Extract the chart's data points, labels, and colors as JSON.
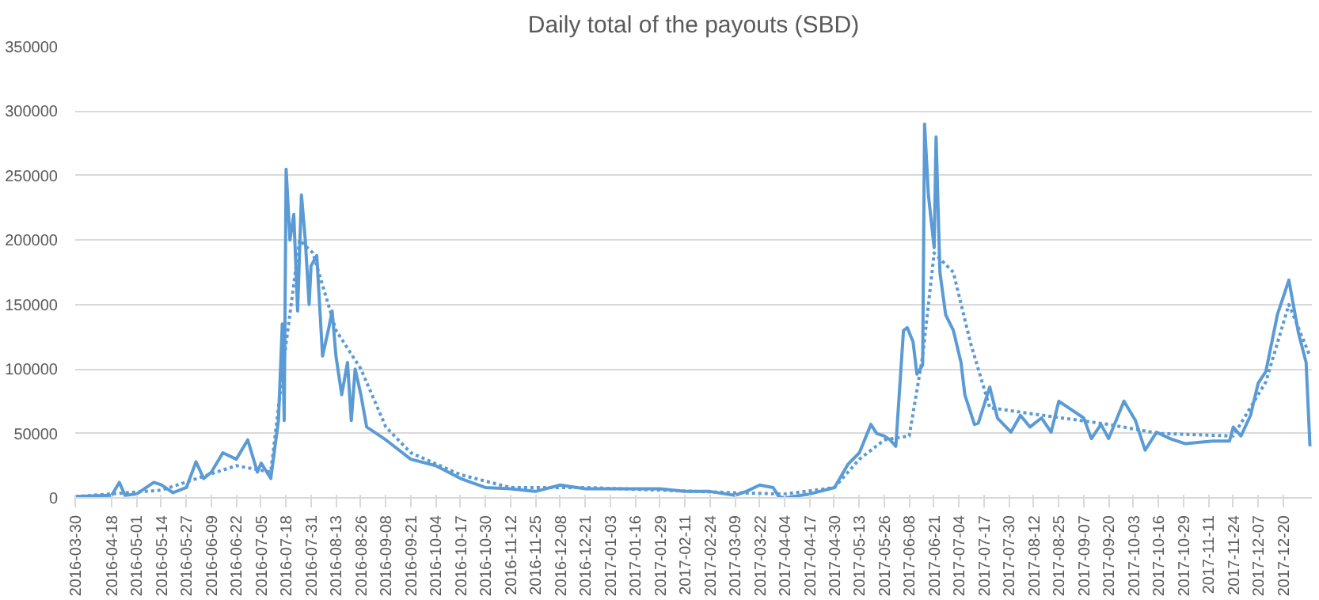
{
  "chart_data": {
    "type": "line",
    "title": "Daily total of the payouts (SBD)",
    "xlim": [
      "2016-03-30",
      "2018-01-04"
    ],
    "ylim": [
      0,
      350000
    ],
    "yticks": [
      0,
      50000,
      100000,
      150000,
      200000,
      250000,
      300000,
      350000
    ],
    "xticks": [
      "2016-03-30",
      "2016-04-18",
      "2016-05-01",
      "2016-05-14",
      "2016-05-27",
      "2016-06-09",
      "2016-06-22",
      "2016-07-05",
      "2016-07-18",
      "2016-07-31",
      "2016-08-13",
      "2016-08-26",
      "2016-09-08",
      "2016-09-21",
      "2016-10-04",
      "2016-10-17",
      "2016-10-30",
      "2016-11-12",
      "2016-11-25",
      "2016-12-08",
      "2016-12-21",
      "2017-01-03",
      "2017-01-16",
      "2017-01-29",
      "2017-02-11",
      "2017-02-24",
      "2017-03-09",
      "2017-03-22",
      "2017-04-04",
      "2017-04-17",
      "2017-04-30",
      "2017-05-13",
      "2017-05-26",
      "2017-06-08",
      "2017-06-21",
      "2017-07-04",
      "2017-07-17",
      "2017-07-30",
      "2017-08-12",
      "2017-08-25",
      "2017-09-07",
      "2017-09-20",
      "2017-10-03",
      "2017-10-16",
      "2017-10-29",
      "2017-11-11",
      "2017-11-24",
      "2017-12-07",
      "2017-12-20"
    ],
    "grid": "y",
    "marker": "none",
    "series": [
      {
        "color": "#5b9bd5",
        "line_style": "solid",
        "x": [
          "2016-03-30",
          "2016-04-18",
          "2016-04-22",
          "2016-04-25",
          "2016-05-01",
          "2016-05-10",
          "2016-05-14",
          "2016-05-20",
          "2016-05-27",
          "2016-06-01",
          "2016-06-05",
          "2016-06-09",
          "2016-06-15",
          "2016-06-22",
          "2016-06-28",
          "2016-07-03",
          "2016-07-05",
          "2016-07-10",
          "2016-07-14",
          "2016-07-16",
          "2016-07-17",
          "2016-07-18",
          "2016-07-20",
          "2016-07-22",
          "2016-07-24",
          "2016-07-26",
          "2016-07-28",
          "2016-07-30",
          "2016-07-31",
          "2016-08-03",
          "2016-08-06",
          "2016-08-09",
          "2016-08-11",
          "2016-08-13",
          "2016-08-16",
          "2016-08-19",
          "2016-08-21",
          "2016-08-23",
          "2016-08-26",
          "2016-08-29",
          "2016-09-08",
          "2016-09-21",
          "2016-10-04",
          "2016-10-17",
          "2016-10-30",
          "2016-11-12",
          "2016-11-25",
          "2016-12-08",
          "2016-12-21",
          "2017-01-03",
          "2017-01-16",
          "2017-01-29",
          "2017-02-11",
          "2017-02-24",
          "2017-03-09",
          "2017-03-15",
          "2017-03-22",
          "2017-03-29",
          "2017-04-01",
          "2017-04-04",
          "2017-04-17",
          "2017-04-30",
          "2017-05-07",
          "2017-05-13",
          "2017-05-19",
          "2017-05-22",
          "2017-05-26",
          "2017-05-29",
          "2017-06-01",
          "2017-06-05",
          "2017-06-07",
          "2017-06-10",
          "2017-06-12",
          "2017-06-15",
          "2017-06-16",
          "2017-06-18",
          "2017-06-21",
          "2017-06-22",
          "2017-06-24",
          "2017-06-27",
          "2017-07-01",
          "2017-07-05",
          "2017-07-07",
          "2017-07-12",
          "2017-07-14",
          "2017-07-20",
          "2017-07-24",
          "2017-07-31",
          "2017-08-05",
          "2017-08-10",
          "2017-08-16",
          "2017-08-21",
          "2017-08-25",
          "2017-08-31",
          "2017-09-07",
          "2017-09-11",
          "2017-09-16",
          "2017-09-20",
          "2017-09-28",
          "2017-10-04",
          "2017-10-09",
          "2017-10-15",
          "2017-10-22",
          "2017-10-30",
          "2017-11-13",
          "2017-11-22",
          "2017-11-24",
          "2017-11-28",
          "2017-12-03",
          "2017-12-07",
          "2017-12-11",
          "2017-12-17",
          "2017-12-23",
          "2017-12-28",
          "2018-01-01",
          "2018-01-03"
        ],
        "values": [
          1000,
          2000,
          12000,
          2000,
          3000,
          12000,
          10000,
          4000,
          8000,
          28000,
          15000,
          20000,
          35000,
          30000,
          45000,
          20000,
          27000,
          15000,
          60000,
          135000,
          60000,
          255000,
          200000,
          220000,
          145000,
          235000,
          200000,
          150000,
          180000,
          188000,
          110000,
          130000,
          145000,
          110000,
          80000,
          105000,
          60000,
          100000,
          80000,
          55000,
          45000,
          30000,
          25000,
          15000,
          8000,
          7000,
          5000,
          10000,
          7000,
          7000,
          7000,
          7000,
          5000,
          5000,
          2000,
          5000,
          10000,
          8000,
          1000,
          0,
          3000,
          8000,
          26000,
          35000,
          57000,
          50000,
          48000,
          45000,
          40000,
          130000,
          132000,
          121000,
          96000,
          103000,
          290000,
          235000,
          194000,
          280000,
          175000,
          142000,
          130000,
          105000,
          80000,
          57000,
          58000,
          86000,
          62000,
          51000,
          64000,
          55000,
          62000,
          51000,
          75000,
          69000,
          62000,
          46000,
          57000,
          46000,
          75000,
          60000,
          37000,
          51000,
          46000,
          42000,
          44000,
          44000,
          55000,
          48000,
          64000,
          89000,
          98000,
          142000,
          169000,
          128000,
          105000,
          40000
        ]
      },
      {
        "type": "line",
        "color": "#5b9bd5",
        "line_style": "dotted",
        "x": [
          "2016-03-30",
          "2016-05-14",
          "2016-06-22",
          "2016-07-10",
          "2016-07-18",
          "2016-07-25",
          "2016-08-01",
          "2016-08-13",
          "2016-08-26",
          "2016-09-08",
          "2016-09-21",
          "2016-10-17",
          "2016-11-12",
          "2016-12-21",
          "2017-03-09",
          "2017-04-04",
          "2017-04-30",
          "2017-05-13",
          "2017-05-26",
          "2017-06-08",
          "2017-06-15",
          "2017-06-21",
          "2017-07-01",
          "2017-07-10",
          "2017-07-20",
          "2017-08-12",
          "2017-09-20",
          "2017-10-16",
          "2017-11-24",
          "2017-12-11",
          "2017-12-23",
          "2018-01-03"
        ],
        "values": [
          1000,
          6000,
          25000,
          20000,
          120000,
          200000,
          190000,
          130000,
          100000,
          55000,
          35000,
          18000,
          8000,
          8000,
          4000,
          3000,
          8000,
          30000,
          45000,
          48000,
          110000,
          190000,
          175000,
          120000,
          70000,
          65000,
          57000,
          50000,
          48000,
          90000,
          150000,
          110000
        ]
      }
    ]
  }
}
